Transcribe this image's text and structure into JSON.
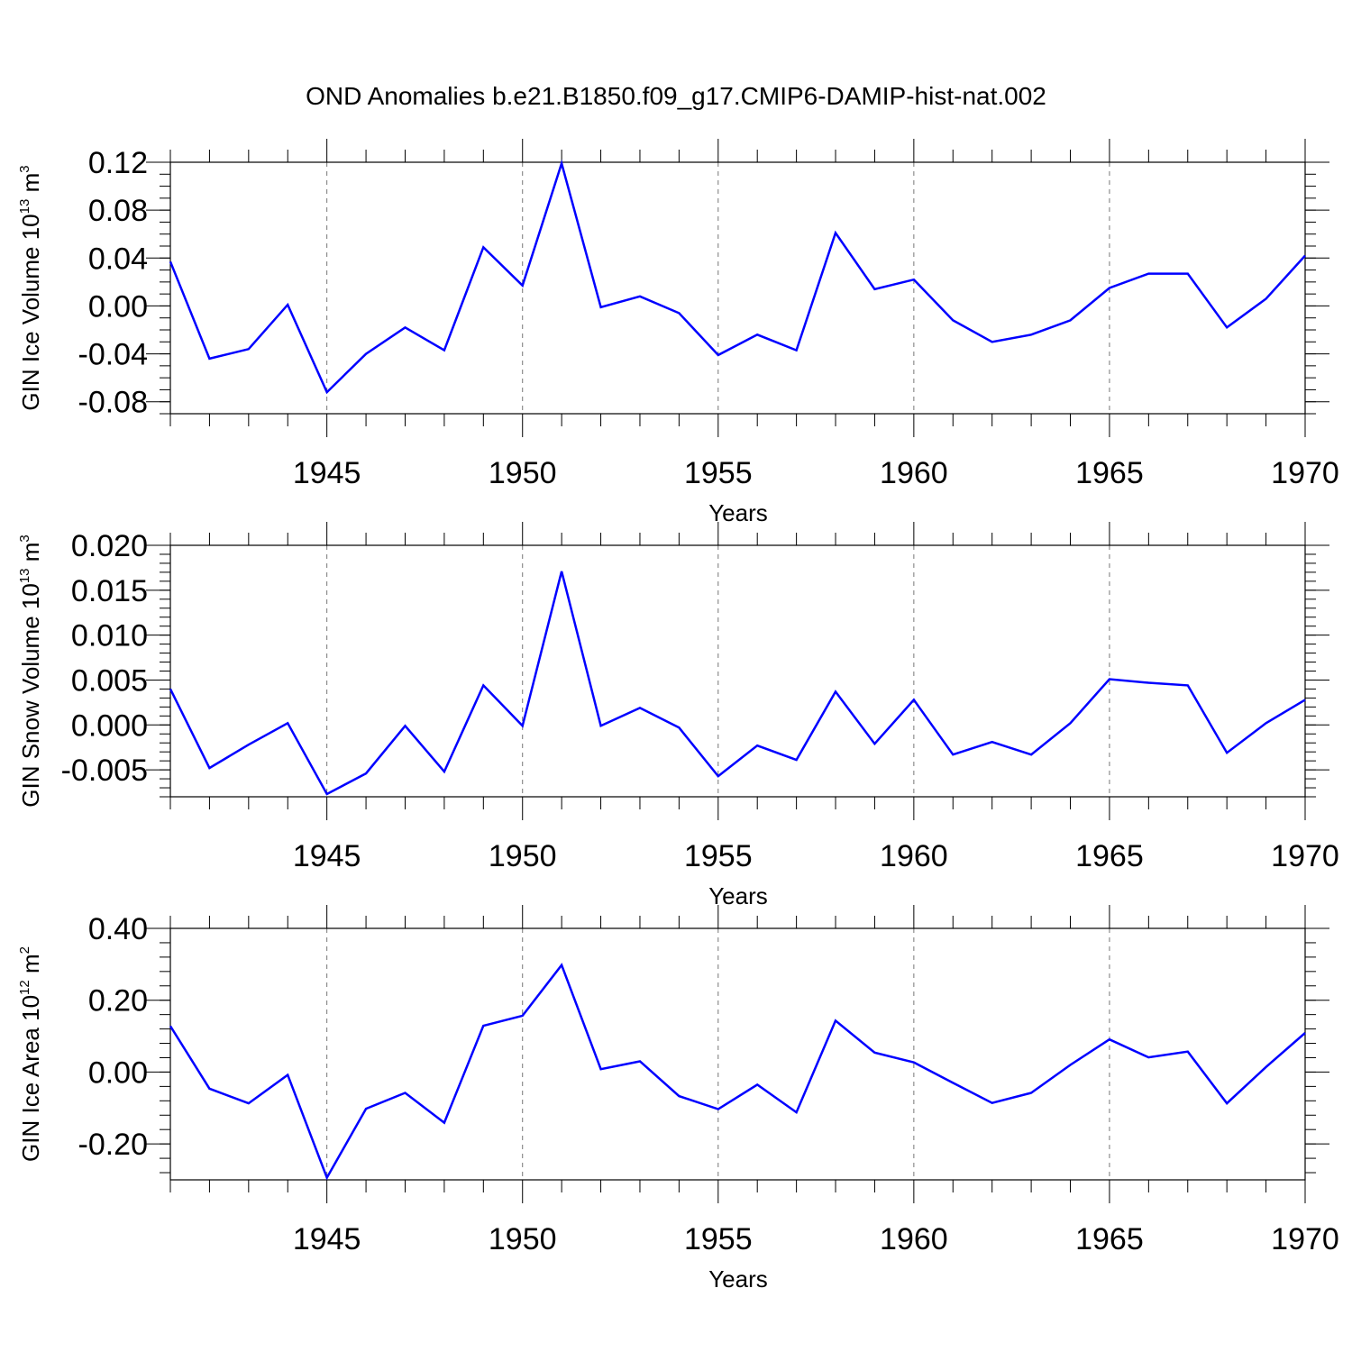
{
  "page": {
    "title": "OND Anomalies b.e21.B1850.f09_g17.CMIP6-DAMIP-hist-nat.002"
  },
  "colors": {
    "line": "#0000ff",
    "frame": "#000000",
    "grid": "#777777"
  },
  "chart_data": [
    {
      "type": "line",
      "xlabel": "Years",
      "ylabel": "GIN Ice Volume 10",
      "ylabel_exp": "13",
      "ylabel_unit": " m",
      "ylabel_unit_exp": "3",
      "xlim": [
        1941,
        1970
      ],
      "ylim": [
        -0.09,
        0.12
      ],
      "grid": "dashed vertical at major x ticks",
      "y_major_ticks": [
        -0.08,
        -0.04,
        0.0,
        0.04,
        0.08,
        0.12
      ],
      "y_tick_labels": [
        "-0.08",
        "-0.04",
        "0.00",
        "0.04",
        "0.08",
        "0.12"
      ],
      "x_major_ticks": [
        1945,
        1950,
        1955,
        1960,
        1965,
        1970
      ],
      "x_tick_labels": [
        "1945",
        "1950",
        "1955",
        "1960",
        "1965",
        "1970"
      ],
      "x": [
        1941,
        1942,
        1943,
        1944,
        1945,
        1946,
        1947,
        1948,
        1949,
        1950,
        1951,
        1952,
        1953,
        1954,
        1955,
        1956,
        1957,
        1958,
        1959,
        1960,
        1961,
        1962,
        1963,
        1964,
        1965,
        1966,
        1967,
        1968,
        1969,
        1970
      ],
      "series": [
        {
          "values": [
            0.037,
            -0.044,
            -0.036,
            0.001,
            -0.072,
            -0.04,
            -0.018,
            -0.037,
            0.049,
            0.017,
            0.119,
            -0.001,
            0.008,
            -0.006,
            -0.041,
            -0.024,
            -0.037,
            0.061,
            0.014,
            0.022,
            -0.012,
            -0.03,
            -0.024,
            -0.012,
            0.015,
            0.027,
            0.027,
            -0.018,
            0.006,
            0.042
          ]
        }
      ]
    },
    {
      "type": "line",
      "xlabel": "Years",
      "ylabel": "GIN Snow Volume 10",
      "ylabel_exp": "13",
      "ylabel_unit": " m",
      "ylabel_unit_exp": "3",
      "xlim": [
        1941,
        1970
      ],
      "ylim": [
        -0.008,
        0.02
      ],
      "grid": "dashed vertical at major x ticks",
      "y_major_ticks": [
        -0.005,
        0.0,
        0.005,
        0.01,
        0.015,
        0.02
      ],
      "y_tick_labels": [
        "-0.005",
        "0.000",
        "0.005",
        "0.010",
        "0.015",
        "0.020"
      ],
      "x_major_ticks": [
        1945,
        1950,
        1955,
        1960,
        1965,
        1970
      ],
      "x_tick_labels": [
        "1945",
        "1950",
        "1955",
        "1960",
        "1965",
        "1970"
      ],
      "x": [
        1941,
        1942,
        1943,
        1944,
        1945,
        1946,
        1947,
        1948,
        1949,
        1950,
        1951,
        1952,
        1953,
        1954,
        1955,
        1956,
        1957,
        1958,
        1959,
        1960,
        1961,
        1962,
        1963,
        1964,
        1965,
        1966,
        1967,
        1968,
        1969,
        1970
      ],
      "series": [
        {
          "values": [
            0.004,
            -0.0048,
            -0.0022,
            0.0002,
            -0.0077,
            -0.0054,
            -0.0001,
            -0.0052,
            0.0044,
            -0.0001,
            0.0171,
            -0.0001,
            0.0019,
            -0.0003,
            -0.0057,
            -0.0023,
            -0.0039,
            0.0037,
            -0.0021,
            0.0028,
            -0.0033,
            -0.0019,
            -0.0033,
            0.0002,
            0.0051,
            0.0047,
            0.0044,
            -0.0031,
            0.0002,
            0.0028
          ]
        }
      ]
    },
    {
      "type": "line",
      "xlabel": "Years",
      "ylabel": "GIN Ice Area 10",
      "ylabel_exp": "12",
      "ylabel_unit": " m",
      "ylabel_unit_exp": "2",
      "xlim": [
        1941,
        1970
      ],
      "ylim": [
        -0.3,
        0.4
      ],
      "grid": "dashed vertical at major x ticks",
      "y_major_ticks": [
        -0.2,
        0.0,
        0.2,
        0.4
      ],
      "y_tick_labels": [
        "-0.20",
        "0.00",
        "0.20",
        "0.40"
      ],
      "x_major_ticks": [
        1945,
        1950,
        1955,
        1960,
        1965,
        1970
      ],
      "x_tick_labels": [
        "1945",
        "1950",
        "1955",
        "1960",
        "1965",
        "1970"
      ],
      "x": [
        1941,
        1942,
        1943,
        1944,
        1945,
        1946,
        1947,
        1948,
        1949,
        1950,
        1951,
        1952,
        1953,
        1954,
        1955,
        1956,
        1957,
        1958,
        1959,
        1960,
        1961,
        1962,
        1963,
        1964,
        1965,
        1966,
        1967,
        1968,
        1969,
        1970
      ],
      "series": [
        {
          "values": [
            0.128,
            -0.046,
            -0.087,
            -0.008,
            -0.294,
            -0.102,
            -0.058,
            -0.141,
            0.129,
            0.157,
            0.298,
            0.008,
            0.03,
            -0.067,
            -0.103,
            -0.035,
            -0.112,
            0.143,
            0.054,
            0.027,
            -0.03,
            -0.086,
            -0.058,
            0.02,
            0.091,
            0.041,
            0.057,
            -0.087,
            0.014,
            0.109
          ]
        }
      ]
    }
  ]
}
